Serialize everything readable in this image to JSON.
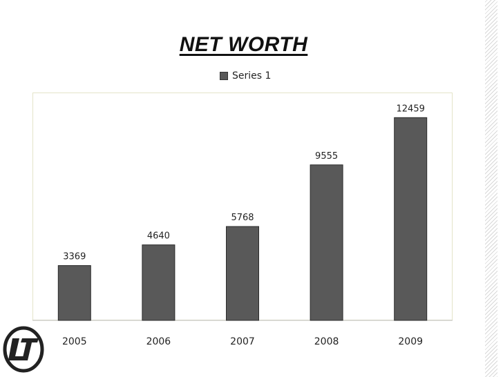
{
  "chart_data": {
    "type": "bar",
    "title": "NET WORTH",
    "categories": [
      "2005",
      "2006",
      "2007",
      "2008",
      "2009"
    ],
    "series": [
      {
        "name": "Series 1",
        "values": [
          3369,
          4640,
          5768,
          9555,
          12459
        ]
      }
    ],
    "data_labels": [
      "3369",
      "4640",
      "5768",
      "9555",
      "12459"
    ],
    "ylim": [
      0,
      14000
    ],
    "grid": false,
    "legend_position": "top",
    "xlabel": "",
    "ylabel": ""
  },
  "colors": {
    "bar_fill": "#595959",
    "bar_stroke": "#2b2b2b",
    "axis": "#bfbfbf",
    "logo": "#222222"
  },
  "logo": {
    "icon": "lt-logo-icon"
  }
}
